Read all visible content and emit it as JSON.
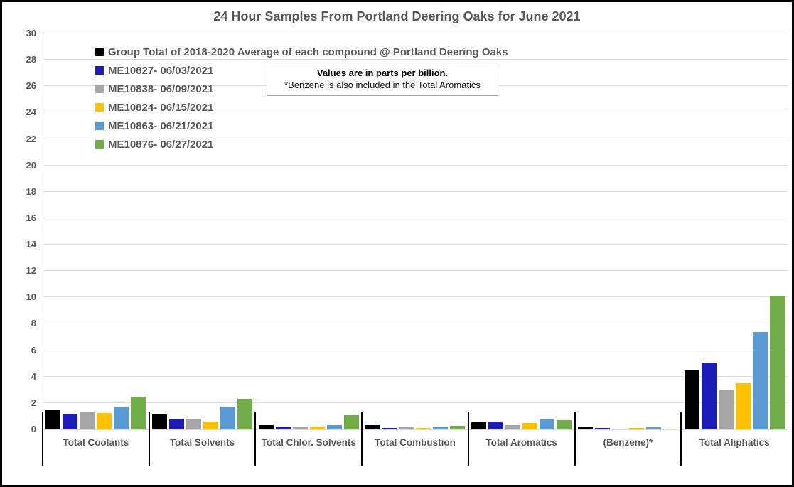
{
  "title": "24 Hour Samples From Portland Deering Oaks for June 2021",
  "note": {
    "line1": "Values are in parts per billion.",
    "line2": "*Benzene is also included in the Total Aromatics"
  },
  "chart_data": {
    "type": "bar",
    "title": "24 Hour Samples From Portland Deering Oaks for June 2021",
    "unit": "parts per billion",
    "categories": [
      "Total Coolants",
      "Total Solvents",
      "Total Chlor. Solvents",
      "Total Combustion",
      "Total Aromatics",
      "(Benzene)*",
      "Total Aliphatics"
    ],
    "series": [
      {
        "name": "Group Total of 2018-2020 Average of each compound @ Portland Deering Oaks",
        "color": "#000000",
        "values": [
          1.5,
          1.15,
          0.35,
          0.3,
          0.55,
          0.2,
          4.45
        ]
      },
      {
        "name": "ME10827- 06/03/2021",
        "color": "#1c1cb8",
        "values": [
          1.2,
          0.8,
          0.2,
          0.1,
          0.6,
          0.1,
          5.05
        ]
      },
      {
        "name": "ME10838- 06/09/2021",
        "color": "#a6a6a6",
        "values": [
          1.3,
          0.8,
          0.2,
          0.15,
          0.35,
          0.05,
          3.0
        ]
      },
      {
        "name": "ME10824- 06/15/2021",
        "color": "#ffc000",
        "values": [
          1.25,
          0.6,
          0.2,
          0.1,
          0.5,
          0.1,
          3.5
        ]
      },
      {
        "name": "ME10863- 06/21/2021",
        "color": "#5b9bd5",
        "values": [
          1.7,
          1.75,
          0.35,
          0.2,
          0.8,
          0.15,
          7.4
        ]
      },
      {
        "name": "ME10876- 06/27/2021",
        "color": "#70ad47",
        "values": [
          2.5,
          2.3,
          1.1,
          0.25,
          0.7,
          0.05,
          10.1
        ]
      }
    ],
    "xlabel": "",
    "ylabel": "",
    "ylim": [
      0,
      30
    ],
    "ytick_step": 2,
    "grid": true,
    "legend_position": "top-left-inside"
  }
}
